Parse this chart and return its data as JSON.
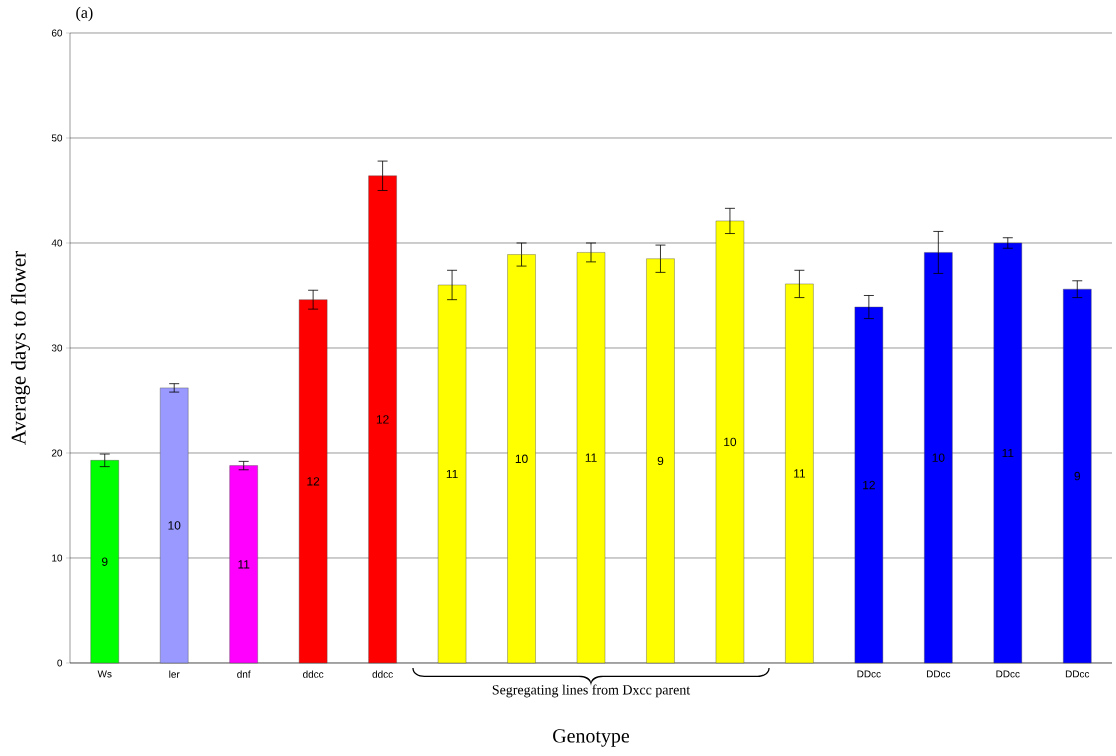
{
  "chart_data": {
    "type": "bar",
    "xlabel": "Genotype",
    "ylabel": "Average days to flower",
    "annotations": [
      "(a)",
      "Segregating lines from Dxcc parent",
      "9",
      "10",
      "11",
      "12",
      "12",
      "11",
      "10",
      "11",
      "9",
      "10",
      "11",
      "12",
      "10",
      "11",
      "9"
    ],
    "categories": [
      "Ws",
      "ler",
      "dnf",
      "ddcc",
      "ddcc",
      null,
      null,
      null,
      null,
      null,
      null,
      "DDcc",
      "DDcc",
      "DDcc",
      "DDcc"
    ],
    "values": [
      19.3,
      26.2,
      18.8,
      34.6,
      46.4,
      36.0,
      38.9,
      39.1,
      38.5,
      42.1,
      36.1,
      33.9,
      39.1,
      40.0,
      35.6
    ],
    "errors": [
      0.6,
      0.4,
      0.4,
      0.9,
      1.4,
      1.4,
      1.1,
      0.9,
      1.3,
      1.2,
      1.3,
      1.1,
      2.0,
      0.5,
      0.8
    ],
    "colors": [
      "#00ff00",
      "#9999ff",
      "#ff00ff",
      "#ff0000",
      "#ff0000",
      "#ffff00",
      "#ffff00",
      "#ffff00",
      "#ffff00",
      "#ffff00",
      "#ffff00",
      "#0000ff",
      "#0000ff",
      "#0000ff",
      "#0000ff"
    ],
    "ylim": [
      0,
      60
    ],
    "yticks": [
      0,
      10,
      20,
      30,
      40,
      50,
      60
    ],
    "grid": "y"
  }
}
